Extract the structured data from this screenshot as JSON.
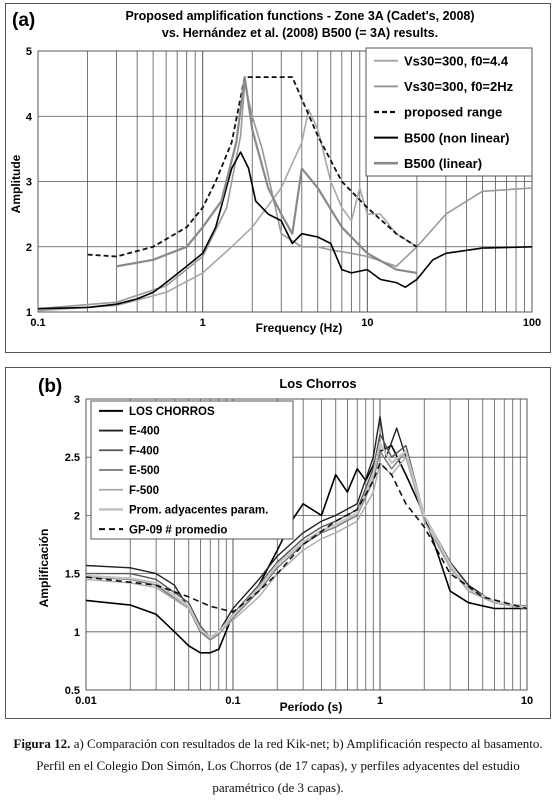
{
  "panel_a": {
    "letter": "(a)",
    "title_line1": "Proposed amplification functions - Zone 3A (Cadet's, 2008)",
    "title_line2": "vs. Hernández et al. (2008) B500 (= 3A) results.",
    "xlabel": "Frequency (Hz)",
    "ylabel": "Amplitude"
  },
  "panel_b": {
    "letter": "(b)",
    "title": "Los Chorros",
    "xlabel": "Período (s)",
    "ylabel": "Amplificación"
  },
  "caption": {
    "lead": "Figura 12.",
    "text": " a) Comparación con resultados de la red Kik-net; b) Amplificación respecto al basamento. Perfil en el Colegio Don Simón, Los Chorros (de 17 capas), y perfiles adyacentes del estudio paramétrico (de 3 capas)."
  },
  "chart_data": [
    {
      "type": "line",
      "panel": "a",
      "xscale": "log",
      "xlim": [
        0.1,
        100
      ],
      "ylim": [
        1,
        5
      ],
      "xticks": [
        0.1,
        1,
        10,
        100
      ],
      "xtick_labels": [
        "0.1",
        "1",
        "10",
        "100"
      ],
      "yticks": [
        1,
        2,
        3,
        4,
        5
      ],
      "grid": true,
      "legend_position": "top-right",
      "series": [
        {
          "name": "Vs30=300, f0=4.4",
          "color": "#a8a8a8",
          "width": 1.6,
          "dash": "",
          "x": [
            0.1,
            0.3,
            0.6,
            1.0,
            1.5,
            2.0,
            3.0,
            4.0,
            4.4,
            5.0,
            6.0,
            7.0,
            8.0,
            9.0,
            10,
            12,
            15,
            20
          ],
          "y": [
            1.02,
            1.1,
            1.3,
            1.6,
            2.0,
            2.3,
            2.9,
            3.6,
            4.1,
            3.8,
            3.0,
            2.6,
            2.4,
            2.9,
            2.5,
            2.5,
            2.2,
            2.0
          ]
        },
        {
          "name": "Vs30=300, f0=2Hz",
          "color": "#999999",
          "width": 1.6,
          "dash": "",
          "x": [
            0.1,
            0.3,
            0.6,
            1.0,
            1.4,
            1.7,
            1.8,
            2.0,
            2.3,
            3.0,
            4.0,
            5.0,
            6.0,
            8.0,
            10,
            15,
            20,
            30,
            50,
            100
          ],
          "y": [
            1.05,
            1.15,
            1.4,
            1.85,
            2.6,
            3.7,
            4.5,
            4.0,
            3.5,
            2.2,
            2.0,
            2.0,
            1.95,
            1.9,
            1.85,
            1.7,
            2.0,
            2.5,
            2.85,
            2.9
          ]
        },
        {
          "name": "proposed range",
          "color": "#111111",
          "width": 1.8,
          "dash": "5,3",
          "x": [
            0.2,
            0.3,
            0.5,
            0.8,
            1.0,
            1.2,
            1.5,
            1.8,
            3.5,
            5.0,
            7.0,
            10,
            15,
            20
          ],
          "y": [
            1.88,
            1.85,
            2.0,
            2.3,
            2.6,
            3.0,
            3.6,
            4.6,
            4.6,
            3.7,
            3.0,
            2.6,
            2.2,
            2.0
          ]
        },
        {
          "name": "B500 (non linear)",
          "color": "#000000",
          "width": 1.6,
          "dash": "",
          "x": [
            0.1,
            0.2,
            0.3,
            0.4,
            0.5,
            0.6,
            0.8,
            1.0,
            1.2,
            1.5,
            1.7,
            1.9,
            2.1,
            2.5,
            3.0,
            3.5,
            4.0,
            5.0,
            6.0,
            7.0,
            8.0,
            10,
            12,
            15,
            17,
            20,
            25,
            30,
            50,
            100
          ],
          "y": [
            1.05,
            1.07,
            1.12,
            1.2,
            1.3,
            1.45,
            1.7,
            1.9,
            2.3,
            3.2,
            3.45,
            3.2,
            2.7,
            2.5,
            2.4,
            2.05,
            2.2,
            2.15,
            2.05,
            1.65,
            1.6,
            1.65,
            1.5,
            1.45,
            1.38,
            1.5,
            1.8,
            1.9,
            1.98,
            2.0
          ]
        },
        {
          "name": "B500  (linear)",
          "color": "#8a8a8a",
          "width": 2.2,
          "dash": "",
          "x": [
            0.3,
            0.5,
            0.8,
            1.0,
            1.3,
            1.6,
            1.8,
            2.0,
            2.5,
            3.0,
            3.5,
            4.0,
            5.0,
            7.0,
            10,
            15,
            20
          ],
          "y": [
            1.7,
            1.8,
            2.0,
            2.3,
            2.7,
            3.6,
            4.6,
            3.8,
            2.9,
            2.5,
            2.2,
            3.2,
            2.9,
            2.3,
            1.9,
            1.65,
            1.6
          ]
        }
      ]
    },
    {
      "type": "line",
      "panel": "b",
      "xscale": "log",
      "xlim": [
        0.01,
        10
      ],
      "ylim": [
        0.5,
        3
      ],
      "xticks": [
        0.01,
        0.1,
        1,
        10
      ],
      "xtick_labels": [
        "0.01",
        "0.1",
        "1",
        "10"
      ],
      "yticks": [
        0.5,
        1,
        1.5,
        2,
        2.5,
        3
      ],
      "ytick_labels": [
        "0.5",
        "1",
        "1.5",
        "2",
        "2.5",
        "3"
      ],
      "grid": true,
      "legend_position": "top-left",
      "series": [
        {
          "name": "LOS CHORROS",
          "color": "#000000",
          "width": 1.6,
          "dash": "",
          "x": [
            0.01,
            0.02,
            0.03,
            0.04,
            0.05,
            0.06,
            0.07,
            0.08,
            0.1,
            0.15,
            0.2,
            0.25,
            0.3,
            0.4,
            0.5,
            0.6,
            0.7,
            0.8,
            1.0,
            1.2,
            1.5,
            2.0,
            2.5,
            3.0,
            4.0,
            6.0,
            10
          ],
          "y": [
            1.27,
            1.23,
            1.15,
            1.0,
            0.88,
            0.82,
            0.82,
            0.85,
            1.15,
            1.4,
            1.7,
            1.95,
            2.1,
            2.0,
            2.35,
            2.2,
            2.4,
            2.3,
            2.55,
            2.6,
            2.35,
            2.0,
            1.65,
            1.35,
            1.25,
            1.2,
            1.2
          ]
        },
        {
          "name": "E-400",
          "color": "#222222",
          "width": 1.4,
          "dash": "",
          "x": [
            0.01,
            0.02,
            0.03,
            0.04,
            0.05,
            0.06,
            0.07,
            0.08,
            0.1,
            0.15,
            0.2,
            0.3,
            0.4,
            0.5,
            0.7,
            0.9,
            1.0,
            1.1,
            1.3,
            1.5,
            2.0,
            3.0,
            4.0,
            6.0,
            10
          ],
          "y": [
            1.57,
            1.55,
            1.5,
            1.4,
            1.2,
            1.0,
            0.95,
            1.0,
            1.2,
            1.45,
            1.65,
            1.85,
            1.95,
            2.0,
            2.1,
            2.5,
            2.85,
            2.5,
            2.75,
            2.5,
            2.0,
            1.6,
            1.4,
            1.25,
            1.2
          ]
        },
        {
          "name": "F-400",
          "color": "#555555",
          "width": 1.4,
          "dash": "",
          "x": [
            0.01,
            0.02,
            0.03,
            0.05,
            0.06,
            0.07,
            0.08,
            0.1,
            0.15,
            0.2,
            0.3,
            0.4,
            0.5,
            0.7,
            0.9,
            1.0,
            1.2,
            1.5,
            2.0,
            3.0,
            4.0,
            6.0,
            10
          ],
          "y": [
            1.5,
            1.5,
            1.45,
            1.25,
            1.05,
            0.95,
            1.0,
            1.15,
            1.4,
            1.6,
            1.8,
            1.9,
            1.95,
            2.05,
            2.4,
            2.7,
            2.5,
            2.6,
            2.0,
            1.6,
            1.35,
            1.25,
            1.22
          ]
        },
        {
          "name": "E-500",
          "color": "#777777",
          "width": 1.4,
          "dash": "",
          "x": [
            0.01,
            0.02,
            0.03,
            0.05,
            0.06,
            0.07,
            0.08,
            0.1,
            0.15,
            0.2,
            0.3,
            0.4,
            0.5,
            0.7,
            0.9,
            1.0,
            1.2,
            1.5,
            2.0,
            3.0,
            4.0,
            6.0,
            10
          ],
          "y": [
            1.47,
            1.45,
            1.4,
            1.2,
            1.0,
            0.93,
            0.98,
            1.12,
            1.35,
            1.55,
            1.75,
            1.85,
            1.9,
            2.0,
            2.3,
            2.55,
            2.4,
            2.55,
            2.0,
            1.55,
            1.35,
            1.25,
            1.2
          ]
        },
        {
          "name": "F-500",
          "color": "#aaaaaa",
          "width": 1.4,
          "dash": "",
          "x": [
            0.01,
            0.02,
            0.03,
            0.05,
            0.06,
            0.07,
            0.08,
            0.1,
            0.15,
            0.2,
            0.3,
            0.4,
            0.5,
            0.7,
            0.9,
            1.0,
            1.2,
            1.5,
            2.0,
            3.0,
            4.0,
            6.0,
            10
          ],
          "y": [
            1.45,
            1.42,
            1.38,
            1.2,
            1.02,
            0.95,
            1.0,
            1.1,
            1.3,
            1.5,
            1.7,
            1.8,
            1.85,
            1.95,
            2.2,
            2.45,
            2.35,
            2.5,
            1.95,
            1.55,
            1.35,
            1.25,
            1.2
          ]
        },
        {
          "name": "Prom. adyacentes param.",
          "color": "#c4c4c4",
          "width": 2.2,
          "dash": "",
          "x": [
            0.01,
            0.02,
            0.03,
            0.05,
            0.06,
            0.07,
            0.08,
            0.1,
            0.15,
            0.2,
            0.3,
            0.4,
            0.5,
            0.7,
            0.9,
            1.0,
            1.2,
            1.5,
            2.0,
            3.0,
            4.0,
            6.0,
            10
          ],
          "y": [
            1.48,
            1.46,
            1.42,
            1.22,
            1.02,
            0.95,
            1.0,
            1.14,
            1.38,
            1.58,
            1.77,
            1.87,
            1.92,
            2.02,
            2.35,
            2.62,
            2.45,
            2.55,
            2.0,
            1.58,
            1.37,
            1.26,
            1.21
          ]
        },
        {
          "name": "GP-09 # promedio",
          "color": "#111111",
          "width": 1.6,
          "dash": "6,4",
          "x": [
            0.01,
            0.03,
            0.05,
            0.07,
            0.1,
            0.15,
            0.2,
            0.3,
            0.5,
            0.7,
            0.9,
            1.0,
            1.2,
            1.5,
            2.0,
            3.0,
            5.0,
            10
          ],
          "y": [
            1.47,
            1.4,
            1.3,
            1.22,
            1.17,
            1.35,
            1.5,
            1.75,
            1.95,
            2.05,
            2.3,
            2.45,
            2.35,
            2.1,
            1.9,
            1.5,
            1.3,
            1.2
          ]
        }
      ]
    }
  ]
}
